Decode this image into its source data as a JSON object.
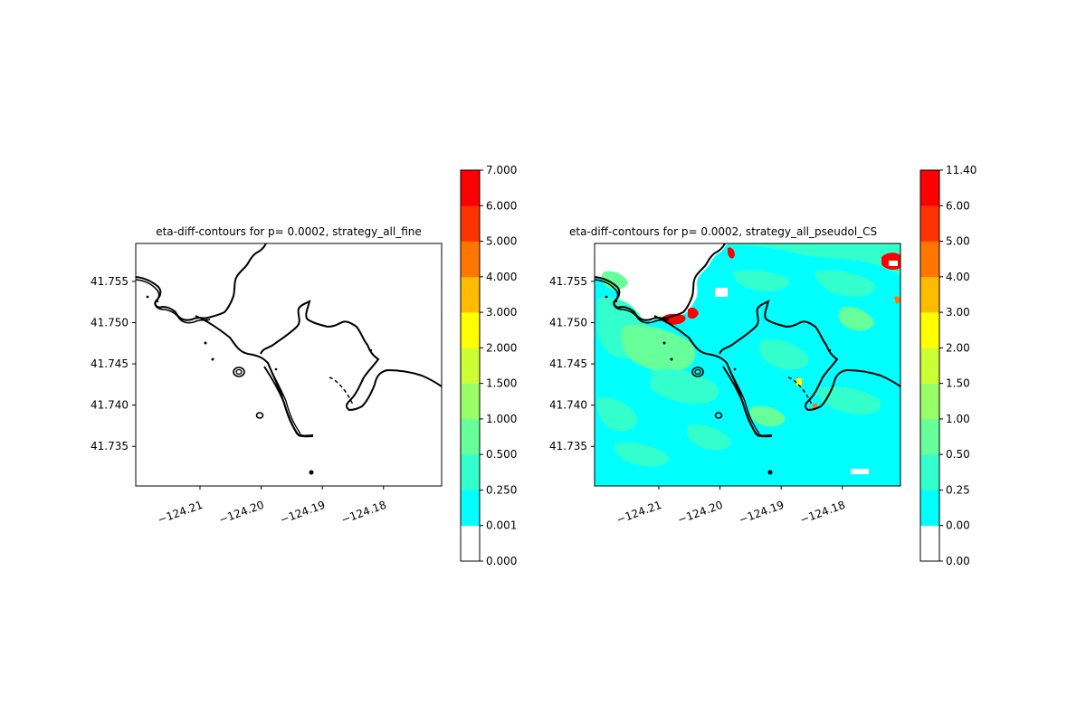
{
  "chart_data": [
    {
      "type": "contour",
      "title": "eta-diff-contours for p= 0.0002, strategy_all_fine",
      "x_ticks": [
        "−124.21",
        "−124.20",
        "−124.19",
        "−124.18"
      ],
      "x_tick_values": [
        -124.21,
        -124.2,
        -124.19,
        -124.18
      ],
      "y_ticks": [
        "41.735",
        "41.740",
        "41.745",
        "41.750",
        "41.755"
      ],
      "y_tick_values": [
        41.735,
        41.74,
        41.745,
        41.75,
        41.755
      ],
      "xlim": [
        -124.2205,
        -124.1705
      ],
      "ylim": [
        41.7302,
        41.7596
      ],
      "colorbar": {
        "labels": [
          "0.000",
          "0.001",
          "0.250",
          "0.500",
          "1.000",
          "1.500",
          "2.000",
          "3.000",
          "4.000",
          "5.000",
          "6.000",
          "7.000"
        ],
        "colors": [
          "#ffffff",
          "#00ffff",
          "#33ffcc",
          "#66ff99",
          "#99ff66",
          "#ccff33",
          "#ffff00",
          "#ffbb00",
          "#ff7700",
          "#ff3300",
          "#ff0000"
        ]
      }
    },
    {
      "type": "contour",
      "title": "eta-diff-contours for p= 0.0002, strategy_all_pseudol_CS",
      "x_ticks": [
        "−124.21",
        "−124.20",
        "−124.19",
        "−124.18"
      ],
      "x_tick_values": [
        -124.21,
        -124.2,
        -124.19,
        -124.18
      ],
      "y_ticks": [
        "41.735",
        "41.740",
        "41.745",
        "41.750",
        "41.755"
      ],
      "y_tick_values": [
        41.735,
        41.74,
        41.745,
        41.75,
        41.755
      ],
      "xlim": [
        -124.2205,
        -124.1705
      ],
      "ylim": [
        41.7302,
        41.7596
      ],
      "colorbar": {
        "labels": [
          "0.00",
          "0.00",
          "0.25",
          "0.50",
          "1.00",
          "1.50",
          "2.00",
          "3.00",
          "4.00",
          "5.00",
          "6.00",
          "11.40"
        ],
        "colors": [
          "#ffffff",
          "#00ffff",
          "#33ffcc",
          "#66ff99",
          "#99ff66",
          "#ccff33",
          "#ffff00",
          "#ffbb00",
          "#ff7700",
          "#ff3300",
          "#ff0000"
        ]
      }
    }
  ]
}
